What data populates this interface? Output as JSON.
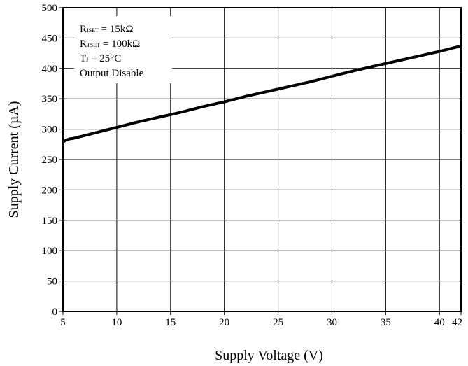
{
  "chart_data": {
    "type": "line",
    "title": "",
    "xlabel": "Supply Voltage (V)",
    "ylabel": "Supply Current (µA)",
    "xlim": [
      5,
      42
    ],
    "ylim": [
      0,
      500
    ],
    "xticks": [
      5,
      10,
      15,
      20,
      25,
      30,
      35,
      40,
      42
    ],
    "yticks": [
      0,
      50,
      100,
      150,
      200,
      250,
      300,
      350,
      400,
      450,
      500
    ],
    "grid": true,
    "series": [
      {
        "color": "#000000",
        "x": [
          5,
          5.3,
          5.6,
          6,
          8,
          10,
          12,
          14,
          16,
          18,
          20,
          22,
          24,
          26,
          28,
          30,
          32,
          34,
          36,
          38,
          40,
          42
        ],
        "y": [
          279,
          282,
          284,
          285,
          294,
          303,
          312,
          320,
          328,
          337,
          345,
          354,
          362,
          370,
          378,
          387,
          396,
          404,
          412,
          420,
          428,
          437
        ]
      }
    ],
    "annotations": [
      {
        "main": "R",
        "sub": "ISET",
        "rest": " = 15kΩ"
      },
      {
        "main": "R",
        "sub": "TSET",
        "rest": " = 100kΩ"
      },
      {
        "main": "T",
        "sub": "J",
        "rest": " = 25°C"
      },
      {
        "main": "Output Disable",
        "sub": "",
        "rest": ""
      }
    ]
  }
}
